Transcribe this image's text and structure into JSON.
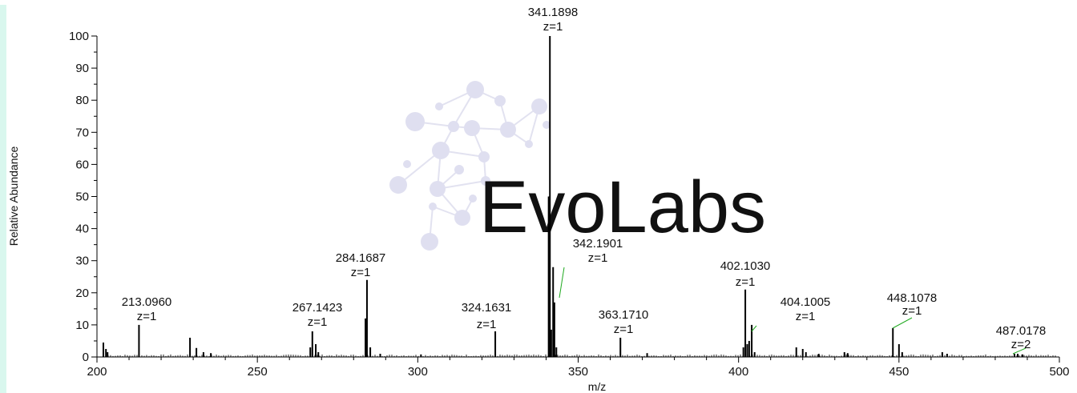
{
  "chart_data": {
    "type": "bar",
    "xlabel": "m/z",
    "ylabel": "Relative Abundance",
    "xlim": [
      200,
      500
    ],
    "ylim": [
      0,
      100
    ],
    "xticks": [
      200,
      250,
      300,
      350,
      400,
      450,
      500
    ],
    "yticks": [
      0,
      10,
      20,
      30,
      40,
      50,
      60,
      70,
      80,
      90,
      100
    ],
    "grid": false,
    "watermark": "EvoLabs",
    "colors": {
      "peaks": "#000000",
      "charge_line": "#22aa22",
      "watermark": "#dcdcec"
    },
    "labeled_peaks": [
      {
        "mz": 213.096,
        "intensity": 10,
        "label": "213.0960",
        "charge": "z=1"
      },
      {
        "mz": 267.1423,
        "intensity": 8,
        "label": "267.1423",
        "charge": "z=1"
      },
      {
        "mz": 284.1687,
        "intensity": 24,
        "label": "284.1687",
        "charge": "z=1"
      },
      {
        "mz": 324.1631,
        "intensity": 8,
        "label": "324.1631",
        "charge": "z=1"
      },
      {
        "mz": 341.1898,
        "intensity": 100,
        "label": "341.1898",
        "charge": "z=1"
      },
      {
        "mz": 342.1901,
        "intensity": 28,
        "label": "342.1901",
        "charge": "z=1"
      },
      {
        "mz": 363.171,
        "intensity": 6,
        "label": "363.1710",
        "charge": "z=1"
      },
      {
        "mz": 402.103,
        "intensity": 21,
        "label": "402.1030",
        "charge": "z=1"
      },
      {
        "mz": 404.1005,
        "intensity": 10,
        "label": "404.1005",
        "charge": "z=1"
      },
      {
        "mz": 448.1078,
        "intensity": 9,
        "label": "448.1078",
        "charge": "z=1"
      },
      {
        "mz": 487.0178,
        "intensity": 1,
        "label": "487.0178",
        "charge": "z=2"
      }
    ],
    "minor_peaks": [
      {
        "mz": 202.0,
        "intensity": 4.5
      },
      {
        "mz": 202.8,
        "intensity": 2.5
      },
      {
        "mz": 203.3,
        "intensity": 1.5
      },
      {
        "mz": 229.0,
        "intensity": 6
      },
      {
        "mz": 231.0,
        "intensity": 2.8
      },
      {
        "mz": 233.2,
        "intensity": 1.5
      },
      {
        "mz": 235.5,
        "intensity": 1.2
      },
      {
        "mz": 266.5,
        "intensity": 3
      },
      {
        "mz": 268.2,
        "intensity": 4
      },
      {
        "mz": 269.0,
        "intensity": 1.5
      },
      {
        "mz": 283.7,
        "intensity": 12
      },
      {
        "mz": 285.2,
        "intensity": 3
      },
      {
        "mz": 288.3,
        "intensity": 1
      },
      {
        "mz": 301.0,
        "intensity": 0.8
      },
      {
        "mz": 340.8,
        "intensity": 50
      },
      {
        "mz": 341.6,
        "intensity": 8.5
      },
      {
        "mz": 342.6,
        "intensity": 17
      },
      {
        "mz": 343.2,
        "intensity": 3
      },
      {
        "mz": 371.5,
        "intensity": 1.2
      },
      {
        "mz": 401.5,
        "intensity": 3
      },
      {
        "mz": 402.7,
        "intensity": 4
      },
      {
        "mz": 403.3,
        "intensity": 5
      },
      {
        "mz": 405.0,
        "intensity": 1.5
      },
      {
        "mz": 418.0,
        "intensity": 3
      },
      {
        "mz": 420.0,
        "intensity": 2.5
      },
      {
        "mz": 421.0,
        "intensity": 1.5
      },
      {
        "mz": 425.0,
        "intensity": 1
      },
      {
        "mz": 433.0,
        "intensity": 1.5
      },
      {
        "mz": 434.0,
        "intensity": 1.2
      },
      {
        "mz": 450.0,
        "intensity": 4
      },
      {
        "mz": 451.0,
        "intensity": 1.5
      },
      {
        "mz": 463.5,
        "intensity": 1.5
      },
      {
        "mz": 465.0,
        "intensity": 1
      },
      {
        "mz": 486.0,
        "intensity": 1
      },
      {
        "mz": 488.5,
        "intensity": 0.8
      }
    ]
  }
}
